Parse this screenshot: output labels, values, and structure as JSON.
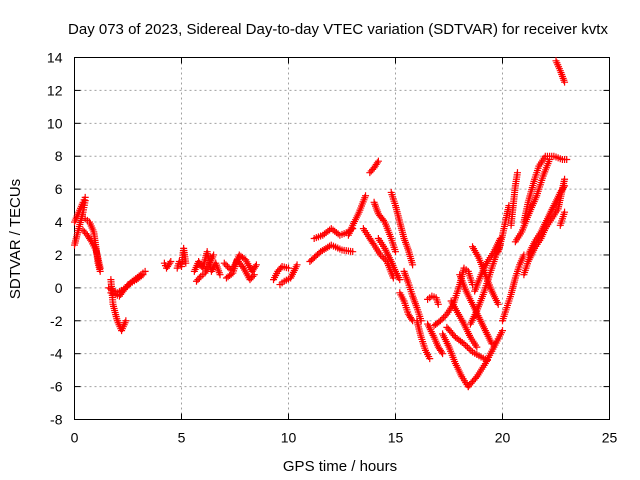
{
  "chart_data": {
    "type": "scatter",
    "title": "Day 073 of 2023, Sidereal Day-to-day VTEC variation (SDTVAR) for receiver kvtx",
    "xlabel": "GPS time / hours",
    "ylabel": "SDTVAR / TECUs",
    "xlim": [
      0,
      25
    ],
    "ylim": [
      -8,
      14
    ],
    "x_ticks": [
      0,
      5,
      10,
      15,
      20,
      25
    ],
    "y_ticks": [
      -8,
      -6,
      -4,
      -2,
      0,
      2,
      4,
      6,
      8,
      10,
      12,
      14
    ],
    "grid": true,
    "marker": "plus",
    "series": [
      {
        "color": "#ff0000",
        "tracks": [
          [
            [
              0.0,
              2.6
            ],
            [
              0.2,
              3.6
            ],
            [
              0.4,
              4.6
            ],
            [
              0.5,
              5.3
            ]
          ],
          [
            [
              0.0,
              4.0
            ],
            [
              0.2,
              4.6
            ],
            [
              0.4,
              5.2
            ],
            [
              0.5,
              5.5
            ]
          ],
          [
            [
              0.5,
              4.2
            ],
            [
              0.7,
              4.0
            ],
            [
              0.9,
              3.4
            ],
            [
              1.0,
              2.5
            ],
            [
              1.1,
              1.5
            ],
            [
              1.2,
              1.0
            ]
          ],
          [
            [
              0.4,
              3.5
            ],
            [
              0.6,
              3.2
            ],
            [
              0.8,
              2.8
            ],
            [
              1.0,
              2.3
            ],
            [
              1.1,
              1.8
            ],
            [
              1.2,
              1.2
            ]
          ],
          [
            [
              1.7,
              0.5
            ],
            [
              1.8,
              -1.0
            ],
            [
              2.0,
              -2.0
            ],
            [
              2.2,
              -2.6
            ],
            [
              2.4,
              -2.0
            ]
          ],
          [
            [
              1.6,
              0.0
            ],
            [
              2.0,
              -0.3
            ],
            [
              2.4,
              0.0
            ],
            [
              2.7,
              0.4
            ],
            [
              3.1,
              0.8
            ],
            [
              3.3,
              1.0
            ]
          ],
          [
            [
              1.7,
              -0.3
            ],
            [
              2.1,
              -0.5
            ],
            [
              2.5,
              0.2
            ],
            [
              2.9,
              0.5
            ],
            [
              3.2,
              0.8
            ]
          ],
          [
            [
              4.2,
              1.5
            ],
            [
              4.3,
              1.2
            ],
            [
              4.5,
              1.6
            ]
          ],
          [
            [
              4.8,
              1.2
            ],
            [
              4.9,
              1.6
            ],
            [
              5.0,
              1.3
            ],
            [
              5.1,
              2.4
            ],
            [
              5.2,
              1.5
            ]
          ],
          [
            [
              5.6,
              1.0
            ],
            [
              5.8,
              1.6
            ],
            [
              6.0,
              1.2
            ],
            [
              6.2,
              2.2
            ],
            [
              6.4,
              1.0
            ],
            [
              6.6,
              1.5
            ],
            [
              6.8,
              0.8
            ]
          ],
          [
            [
              5.7,
              0.4
            ],
            [
              5.9,
              0.7
            ],
            [
              6.1,
              0.9
            ],
            [
              6.3,
              1.4
            ],
            [
              6.5,
              2.0
            ]
          ],
          [
            [
              7.0,
              1.5
            ],
            [
              7.3,
              1.1
            ],
            [
              7.5,
              1.4
            ],
            [
              7.7,
              2.0
            ],
            [
              8.0,
              1.7
            ],
            [
              8.3,
              1.0
            ],
            [
              8.5,
              1.4
            ]
          ],
          [
            [
              7.1,
              0.6
            ],
            [
              7.4,
              0.9
            ],
            [
              7.6,
              1.7
            ],
            [
              7.9,
              1.2
            ],
            [
              8.2,
              0.5
            ],
            [
              8.4,
              0.8
            ]
          ],
          [
            [
              9.3,
              0.5
            ],
            [
              9.5,
              1.0
            ],
            [
              9.7,
              1.3
            ],
            [
              10.0,
              1.2
            ]
          ],
          [
            [
              9.6,
              0.2
            ],
            [
              9.8,
              0.4
            ],
            [
              10.1,
              0.6
            ],
            [
              10.4,
              1.4
            ]
          ],
          [
            [
              11.2,
              3.0
            ],
            [
              11.6,
              3.2
            ],
            [
              12.0,
              3.6
            ],
            [
              12.4,
              3.2
            ],
            [
              12.8,
              3.4
            ],
            [
              13.0,
              3.6
            ]
          ],
          [
            [
              11.0,
              1.6
            ],
            [
              11.5,
              2.2
            ],
            [
              12.0,
              2.6
            ],
            [
              12.5,
              2.3
            ],
            [
              13.0,
              2.2
            ]
          ],
          [
            [
              12.8,
              3.2
            ],
            [
              13.0,
              3.8
            ],
            [
              13.3,
              4.6
            ],
            [
              13.6,
              5.6
            ]
          ],
          [
            [
              13.8,
              7.0
            ],
            [
              14.0,
              7.3
            ],
            [
              14.2,
              7.7
            ]
          ],
          [
            [
              13.5,
              3.6
            ],
            [
              13.8,
              3.0
            ],
            [
              14.0,
              2.6
            ],
            [
              14.3,
              2.0
            ],
            [
              14.6,
              1.6
            ],
            [
              14.9,
              0.6
            ]
          ],
          [
            [
              14.0,
              5.2
            ],
            [
              14.2,
              4.5
            ],
            [
              14.5,
              4.0
            ],
            [
              14.8,
              3.0
            ],
            [
              15.0,
              2.2
            ]
          ],
          [
            [
              14.2,
              3.0
            ],
            [
              14.5,
              2.4
            ],
            [
              14.8,
              1.6
            ],
            [
              15.0,
              1.0
            ],
            [
              15.2,
              0.5
            ]
          ],
          [
            [
              14.8,
              5.8
            ],
            [
              15.0,
              5.0
            ],
            [
              15.2,
              4.0
            ],
            [
              15.4,
              3.0
            ],
            [
              15.6,
              2.3
            ],
            [
              15.8,
              1.4
            ]
          ],
          [
            [
              15.4,
              1.0
            ],
            [
              15.6,
              0.3
            ],
            [
              15.8,
              -0.5
            ],
            [
              16.0,
              -1.2
            ],
            [
              16.2,
              -2.0
            ]
          ],
          [
            [
              15.2,
              -0.3
            ],
            [
              15.4,
              -0.8
            ],
            [
              15.6,
              -1.6
            ],
            [
              15.8,
              -2.0
            ]
          ],
          [
            [
              16.0,
              -2.0
            ],
            [
              16.2,
              -3.0
            ],
            [
              16.4,
              -3.8
            ],
            [
              16.6,
              -4.3
            ]
          ],
          [
            [
              16.5,
              -0.7
            ],
            [
              16.7,
              -0.5
            ],
            [
              16.9,
              -0.6
            ],
            [
              17.0,
              -1.0
            ]
          ],
          [
            [
              16.5,
              -2.2
            ],
            [
              16.8,
              -3.0
            ],
            [
              17.0,
              -3.6
            ],
            [
              17.2,
              -4.0
            ]
          ],
          [
            [
              16.8,
              -2.3
            ],
            [
              17.1,
              -2.0
            ],
            [
              17.4,
              -1.6
            ],
            [
              17.7,
              -1.0
            ],
            [
              18.0,
              0.2
            ],
            [
              18.2,
              1.2
            ],
            [
              18.4,
              1.0
            ],
            [
              18.6,
              0.2
            ]
          ],
          [
            [
              17.2,
              -2.8
            ],
            [
              17.5,
              -3.6
            ],
            [
              17.8,
              -4.6
            ],
            [
              18.1,
              -5.4
            ],
            [
              18.4,
              -6.0
            ]
          ],
          [
            [
              18.4,
              -6.0
            ],
            [
              18.8,
              -5.4
            ],
            [
              19.2,
              -4.6
            ],
            [
              19.6,
              -3.6
            ],
            [
              20.0,
              -2.6
            ]
          ],
          [
            [
              17.4,
              -2.4
            ],
            [
              17.8,
              -3.0
            ],
            [
              18.2,
              -3.4
            ],
            [
              18.6,
              -3.9
            ],
            [
              19.0,
              -4.2
            ],
            [
              19.3,
              -4.4
            ]
          ],
          [
            [
              17.6,
              -0.8
            ],
            [
              17.9,
              -1.5
            ],
            [
              18.2,
              -2.2
            ],
            [
              18.5,
              -3.0
            ],
            [
              18.8,
              -3.6
            ]
          ],
          [
            [
              18.5,
              -2.2
            ],
            [
              18.8,
              -1.4
            ],
            [
              19.1,
              -0.4
            ],
            [
              19.4,
              0.8
            ],
            [
              19.7,
              2.0
            ],
            [
              19.9,
              2.6
            ]
          ],
          [
            [
              18.0,
              0.8
            ],
            [
              18.3,
              -0.2
            ],
            [
              18.6,
              -1.0
            ],
            [
              18.9,
              -1.8
            ],
            [
              19.2,
              -2.6
            ],
            [
              19.5,
              -3.4
            ]
          ],
          [
            [
              18.6,
              2.5
            ],
            [
              18.9,
              1.8
            ],
            [
              19.2,
              0.8
            ],
            [
              19.5,
              -0.2
            ],
            [
              19.8,
              -1.0
            ]
          ],
          [
            [
              18.7,
              -0.2
            ],
            [
              19.0,
              0.8
            ],
            [
              19.3,
              1.6
            ],
            [
              19.6,
              2.2
            ],
            [
              19.9,
              3.0
            ]
          ],
          [
            [
              19.8,
              2.2
            ],
            [
              20.0,
              3.2
            ],
            [
              20.2,
              4.4
            ],
            [
              20.3,
              5.0
            ]
          ],
          [
            [
              20.0,
              -2.0
            ],
            [
              20.2,
              -1.2
            ],
            [
              20.4,
              -0.4
            ],
            [
              20.6,
              0.6
            ],
            [
              20.8,
              1.4
            ],
            [
              21.0,
              2.0
            ]
          ],
          [
            [
              20.4,
              3.8
            ],
            [
              20.5,
              5.0
            ],
            [
              20.6,
              6.2
            ],
            [
              20.7,
              7.0
            ]
          ],
          [
            [
              20.6,
              2.8
            ],
            [
              20.9,
              3.4
            ],
            [
              21.2,
              4.4
            ],
            [
              21.6,
              5.6
            ],
            [
              21.9,
              6.8
            ],
            [
              22.2,
              7.8
            ]
          ],
          [
            [
              21.0,
              4.0
            ],
            [
              21.2,
              5.2
            ],
            [
              21.5,
              6.6
            ],
            [
              21.7,
              7.4
            ],
            [
              22.0,
              8.0
            ],
            [
              22.4,
              8.0
            ],
            [
              22.8,
              7.8
            ],
            [
              23.0,
              7.8
            ]
          ],
          [
            [
              21.0,
              0.8
            ],
            [
              21.2,
              1.6
            ],
            [
              21.5,
              2.4
            ],
            [
              21.8,
              3.0
            ],
            [
              22.0,
              3.6
            ],
            [
              22.3,
              4.2
            ],
            [
              22.6,
              4.8
            ],
            [
              22.9,
              6.6
            ]
          ],
          [
            [
              21.2,
              2.0
            ],
            [
              21.5,
              2.8
            ],
            [
              21.8,
              3.4
            ],
            [
              22.1,
              4.2
            ],
            [
              22.4,
              5.0
            ],
            [
              22.7,
              5.8
            ],
            [
              22.9,
              6.2
            ]
          ],
          [
            [
              22.7,
              3.8
            ],
            [
              22.8,
              4.2
            ],
            [
              22.9,
              4.6
            ]
          ],
          [
            [
              22.5,
              13.8
            ],
            [
              22.7,
              13.2
            ],
            [
              22.9,
              12.5
            ]
          ]
        ]
      }
    ]
  }
}
